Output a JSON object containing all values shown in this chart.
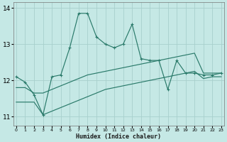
{
  "xlabel": "Humidex (Indice chaleur)",
  "background_color": "#c5e8e5",
  "grid_color": "#a8d0cc",
  "line_color": "#2a7a6a",
  "x_values": [
    0,
    1,
    2,
    3,
    4,
    5,
    6,
    7,
    8,
    9,
    10,
    11,
    12,
    13,
    14,
    15,
    16,
    17,
    18,
    19,
    20,
    21,
    22,
    23
  ],
  "main_line": [
    12.1,
    11.95,
    11.6,
    11.05,
    12.1,
    12.15,
    12.9,
    13.85,
    13.85,
    13.2,
    13.0,
    12.9,
    13.0,
    13.55,
    12.6,
    12.55,
    12.55,
    11.75,
    12.55,
    12.2,
    12.2,
    12.15,
    12.15,
    12.2
  ],
  "upper_line": [
    11.8,
    11.8,
    11.65,
    11.65,
    11.75,
    11.85,
    11.95,
    12.05,
    12.15,
    12.2,
    12.25,
    12.3,
    12.35,
    12.4,
    12.45,
    12.5,
    12.55,
    12.6,
    12.65,
    12.7,
    12.75,
    12.2,
    12.2,
    12.2
  ],
  "lower_line": [
    11.4,
    11.4,
    11.4,
    11.05,
    11.15,
    11.25,
    11.35,
    11.45,
    11.55,
    11.65,
    11.75,
    11.8,
    11.85,
    11.9,
    11.95,
    12.0,
    12.05,
    12.1,
    12.15,
    12.2,
    12.25,
    12.05,
    12.1,
    12.1
  ],
  "ylim": [
    10.75,
    14.15
  ],
  "xlim": [
    -0.3,
    23.3
  ],
  "yticks": [
    11,
    12,
    13,
    14
  ],
  "xticks": [
    0,
    1,
    2,
    3,
    4,
    5,
    6,
    7,
    8,
    9,
    10,
    11,
    12,
    13,
    14,
    15,
    16,
    17,
    18,
    19,
    20,
    21,
    22,
    23
  ]
}
